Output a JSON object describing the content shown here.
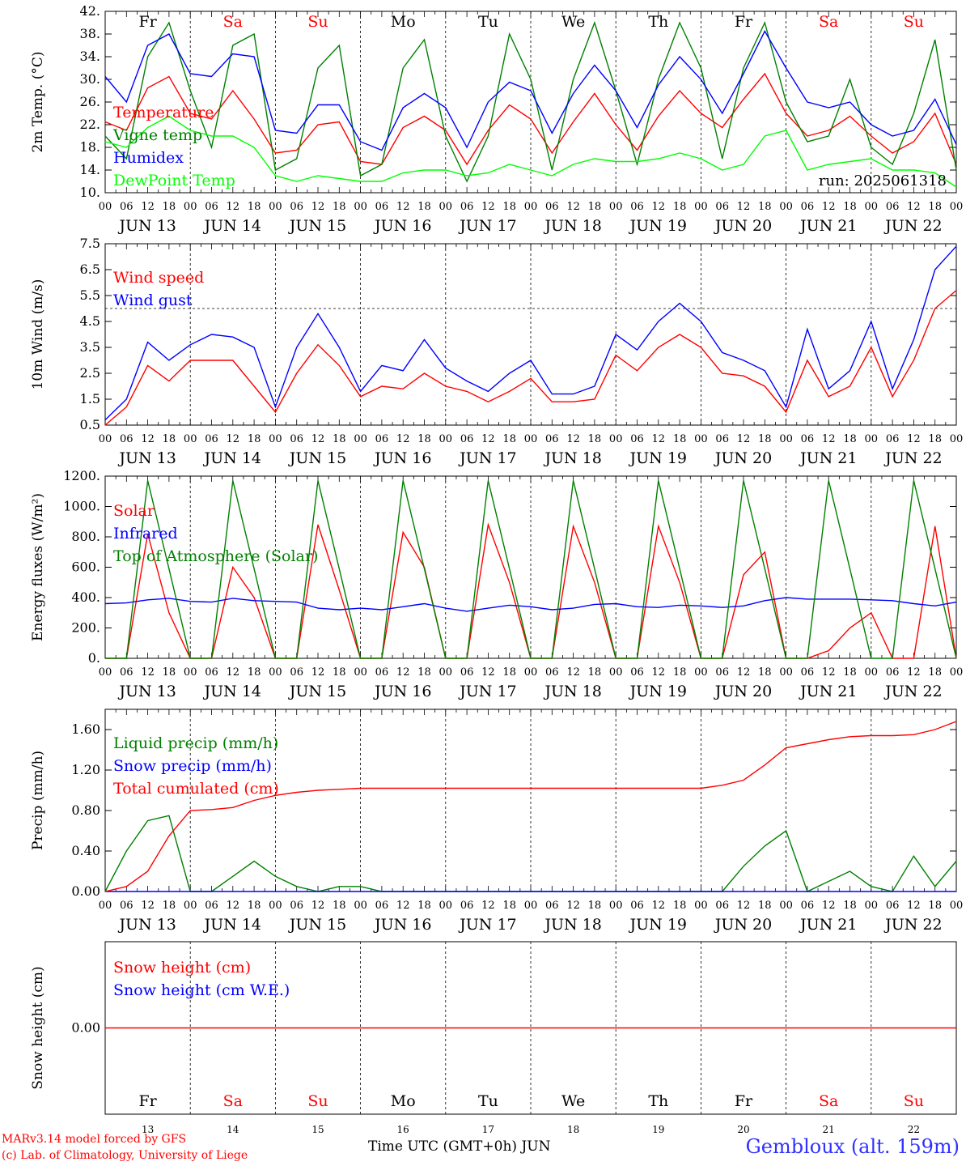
{
  "chart_data": [
    {
      "type": "line",
      "ylabel": "2m Temp. (°C)",
      "ylim": [
        10,
        42
      ],
      "yticks": [
        "42.",
        "38.",
        "34.",
        "30.",
        "26.",
        "22.",
        "18.",
        "14.",
        "10."
      ],
      "annotation": "run: 2025061318",
      "legend": [
        {
          "label": "Temperature",
          "color": "#ff0000"
        },
        {
          "label": "Vigne temp",
          "color": "#008000"
        },
        {
          "label": "Humidex",
          "color": "#0000ff"
        },
        {
          "label": "DewPoint Temp",
          "color": "#00ff00"
        }
      ],
      "x": [
        0,
        6,
        12,
        18,
        24,
        30,
        36,
        42,
        48,
        54,
        60,
        66,
        72,
        78,
        84,
        90,
        96,
        102,
        108,
        114,
        120,
        126,
        132,
        138,
        144,
        150,
        156,
        162,
        168,
        174,
        180,
        186,
        192,
        198,
        204,
        210,
        216,
        222,
        228,
        234,
        240
      ],
      "series": [
        {
          "name": "Temperature",
          "color": "#ff0000",
          "values": [
            22.5,
            21,
            28.5,
            30.5,
            24,
            23,
            28,
            23,
            17,
            17.5,
            22,
            22.5,
            15.5,
            15,
            21.5,
            23.5,
            21,
            15,
            21,
            25.5,
            23,
            17,
            22.5,
            27.5,
            22,
            17.5,
            23.5,
            28,
            24,
            21.5,
            26.5,
            31,
            24,
            20,
            21,
            23.5,
            20,
            17,
            19,
            24,
            15
          ]
        },
        {
          "name": "Vigne temp",
          "color": "#008000",
          "values": [
            20,
            16,
            34,
            40,
            28,
            18,
            36,
            38,
            14,
            16,
            32,
            36,
            13,
            15,
            32,
            37,
            20,
            12,
            20,
            38,
            30,
            14,
            30,
            40,
            28,
            15,
            30,
            40,
            32,
            16,
            32,
            40,
            26,
            19,
            20,
            30,
            18,
            15,
            24,
            37,
            14
          ]
        },
        {
          "name": "Humidex",
          "color": "#0000ff",
          "values": [
            30.5,
            26,
            36,
            38,
            31,
            30.5,
            34.5,
            34,
            21,
            20.5,
            25.5,
            25.5,
            19,
            17.5,
            25,
            27.5,
            25,
            18,
            26,
            29.5,
            28,
            20.5,
            27.5,
            32.5,
            28,
            21.5,
            29,
            34,
            30,
            24,
            31,
            38.5,
            32,
            26,
            25,
            26,
            22,
            20,
            21,
            26.5,
            18.5
          ]
        },
        {
          "name": "DewPoint Temp",
          "color": "#00ff00",
          "values": [
            19,
            18,
            21.5,
            23.5,
            21,
            20,
            20,
            18,
            13,
            12,
            13,
            12.5,
            12,
            12,
            13.5,
            14,
            14,
            13,
            13.5,
            15,
            14,
            13,
            15,
            16,
            15.5,
            15.5,
            16,
            17,
            16,
            14,
            15,
            20,
            21,
            14,
            15,
            15.5,
            16,
            14,
            14,
            13.5,
            11
          ]
        }
      ]
    },
    {
      "type": "line",
      "ylabel": "10m Wind (m/s)",
      "ylim": [
        0.5,
        7.5
      ],
      "yticks": [
        "7.5",
        "6.5",
        "5.5",
        "4.5",
        "3.5",
        "2.5",
        "1.5",
        "0.5"
      ],
      "reference_line": 5.0,
      "legend": [
        {
          "label": "Wind speed",
          "color": "#ff0000"
        },
        {
          "label": "Wind gust",
          "color": "#0000ff"
        }
      ],
      "x": [
        0,
        6,
        12,
        18,
        24,
        30,
        36,
        42,
        48,
        54,
        60,
        66,
        72,
        78,
        84,
        90,
        96,
        102,
        108,
        114,
        120,
        126,
        132,
        138,
        144,
        150,
        156,
        162,
        168,
        174,
        180,
        186,
        192,
        198,
        204,
        210,
        216,
        222,
        228,
        234,
        240
      ],
      "series": [
        {
          "name": "Wind speed",
          "color": "#ff0000",
          "values": [
            0.5,
            1.2,
            2.8,
            2.2,
            3,
            3,
            3,
            2,
            1,
            2.5,
            3.6,
            2.8,
            1.6,
            2,
            1.9,
            2.5,
            2,
            1.8,
            1.4,
            1.8,
            2.3,
            1.4,
            1.4,
            1.5,
            3.2,
            2.6,
            3.5,
            4,
            3.5,
            2.5,
            2.4,
            2,
            1,
            3,
            1.6,
            2,
            3.5,
            1.6,
            3,
            5,
            5.7
          ]
        },
        {
          "name": "Wind gust",
          "color": "#0000ff",
          "values": [
            0.7,
            1.5,
            3.7,
            3,
            3.6,
            4,
            3.9,
            3.5,
            1.2,
            3.5,
            4.8,
            3.5,
            1.8,
            2.8,
            2.6,
            3.8,
            2.7,
            2.2,
            1.8,
            2.5,
            3,
            1.7,
            1.7,
            2,
            4,
            3.4,
            4.5,
            5.2,
            4.5,
            3.3,
            3,
            2.6,
            1.2,
            4.2,
            1.9,
            2.6,
            4.5,
            1.9,
            3.8,
            6.5,
            7.4
          ]
        }
      ]
    },
    {
      "type": "line",
      "ylabel": "Energy fluxes (W/m²)",
      "ylim": [
        0,
        1200
      ],
      "yticks": [
        "1200.",
        "1000.",
        "800.",
        "600.",
        "400.",
        "200.",
        "0."
      ],
      "legend": [
        {
          "label": "Solar",
          "color": "#ff0000"
        },
        {
          "label": "Infrared",
          "color": "#0000ff"
        },
        {
          "label": "Top of Atmosphere (Solar)",
          "color": "#008000"
        }
      ],
      "x": [
        0,
        6,
        12,
        18,
        24,
        30,
        36,
        42,
        48,
        54,
        60,
        66,
        72,
        78,
        84,
        90,
        96,
        102,
        108,
        114,
        120,
        126,
        132,
        138,
        144,
        150,
        156,
        162,
        168,
        174,
        180,
        186,
        192,
        198,
        204,
        210,
        216,
        222,
        228,
        234,
        240
      ],
      "series": [
        {
          "name": "Solar",
          "color": "#ff0000",
          "values": [
            0,
            0,
            820,
            300,
            0,
            0,
            600,
            400,
            0,
            0,
            880,
            450,
            0,
            0,
            830,
            600,
            0,
            0,
            880,
            500,
            0,
            0,
            870,
            500,
            0,
            0,
            870,
            500,
            0,
            0,
            550,
            700,
            0,
            0,
            50,
            200,
            300,
            0,
            0,
            870,
            0
          ]
        },
        {
          "name": "Infrared",
          "color": "#0000ff",
          "values": [
            360,
            365,
            385,
            395,
            375,
            370,
            395,
            380,
            375,
            370,
            330,
            320,
            330,
            320,
            340,
            360,
            330,
            310,
            330,
            350,
            340,
            320,
            330,
            355,
            360,
            340,
            335,
            350,
            345,
            335,
            345,
            380,
            400,
            390,
            390,
            390,
            385,
            380,
            360,
            345,
            370
          ]
        },
        {
          "name": "Top of Atmosphere (Solar)",
          "color": "#008000",
          "values": [
            0,
            0,
            1170,
            590,
            0,
            0,
            1170,
            590,
            0,
            0,
            1170,
            590,
            0,
            0,
            1170,
            590,
            0,
            0,
            1170,
            590,
            0,
            0,
            1170,
            590,
            0,
            0,
            1170,
            590,
            0,
            0,
            1170,
            590,
            0,
            0,
            1170,
            590,
            0,
            0,
            1170,
            590,
            0
          ]
        }
      ]
    },
    {
      "type": "line",
      "ylabel": "Precip (mm/h)",
      "ylim": [
        0,
        1.8
      ],
      "yticks": [
        "1.60",
        "1.20",
        "0.80",
        "0.40",
        "0.00"
      ],
      "legend": [
        {
          "label": "Liquid precip (mm/h)",
          "color": "#008000"
        },
        {
          "label": "Snow precip (mm/h)",
          "color": "#0000ff"
        },
        {
          "label": "Total cumulated (cm)",
          "color": "#ff0000"
        }
      ],
      "x": [
        0,
        6,
        12,
        18,
        24,
        30,
        36,
        42,
        48,
        54,
        60,
        66,
        72,
        78,
        84,
        90,
        96,
        102,
        108,
        114,
        120,
        126,
        132,
        138,
        144,
        150,
        156,
        162,
        168,
        174,
        180,
        186,
        192,
        198,
        204,
        210,
        216,
        222,
        228,
        234,
        240
      ],
      "series": [
        {
          "name": "Liquid precip (mm/h)",
          "color": "#008000",
          "values": [
            0,
            0.4,
            0.7,
            0.75,
            0,
            0,
            0.15,
            0.3,
            0.15,
            0.05,
            0,
            0.05,
            0.05,
            0,
            0,
            0,
            0,
            0,
            0,
            0,
            0,
            0,
            0,
            0,
            0,
            0,
            0,
            0,
            0,
            0,
            0.25,
            0.45,
            0.6,
            0,
            0.1,
            0.2,
            0.05,
            0,
            0.35,
            0.05,
            0.3
          ]
        },
        {
          "name": "Snow precip (mm/h)",
          "color": "#0000ff",
          "values": [
            0,
            0,
            0,
            0,
            0,
            0,
            0,
            0,
            0,
            0,
            0,
            0,
            0,
            0,
            0,
            0,
            0,
            0,
            0,
            0,
            0,
            0,
            0,
            0,
            0,
            0,
            0,
            0,
            0,
            0,
            0,
            0,
            0,
            0,
            0,
            0,
            0,
            0,
            0,
            0,
            0
          ]
        },
        {
          "name": "Total cumulated (cm)",
          "color": "#ff0000",
          "values": [
            0,
            0.05,
            0.2,
            0.55,
            0.8,
            0.81,
            0.83,
            0.9,
            0.95,
            0.98,
            1.0,
            1.01,
            1.02,
            1.02,
            1.02,
            1.02,
            1.02,
            1.02,
            1.02,
            1.02,
            1.02,
            1.02,
            1.02,
            1.02,
            1.02,
            1.02,
            1.02,
            1.02,
            1.02,
            1.05,
            1.1,
            1.25,
            1.42,
            1.46,
            1.5,
            1.53,
            1.54,
            1.54,
            1.55,
            1.6,
            1.68
          ]
        }
      ]
    },
    {
      "type": "line",
      "ylabel": "Snow height (cm)",
      "ylim": [
        -1,
        1
      ],
      "yticks": [
        "0.00"
      ],
      "legend": [
        {
          "label": "Snow height (cm)",
          "color": "#ff0000"
        },
        {
          "label": "Snow height (cm W.E.)",
          "color": "#0000ff"
        }
      ],
      "x": [
        0,
        240
      ],
      "series": [
        {
          "name": "Snow height (cm)",
          "color": "#ff0000",
          "values": [
            0,
            0
          ]
        }
      ]
    }
  ],
  "days": [
    {
      "abbr": "Fr",
      "date": "JUN 13",
      "num": "13",
      "weekend": false
    },
    {
      "abbr": "Sa",
      "date": "JUN 14",
      "num": "14",
      "weekend": true
    },
    {
      "abbr": "Su",
      "date": "JUN 15",
      "num": "15",
      "weekend": true
    },
    {
      "abbr": "Mo",
      "date": "JUN 16",
      "num": "16",
      "weekend": false
    },
    {
      "abbr": "Tu",
      "date": "JUN 17",
      "num": "17",
      "weekend": false
    },
    {
      "abbr": "We",
      "date": "JUN 18",
      "num": "18",
      "weekend": false
    },
    {
      "abbr": "Th",
      "date": "JUN 19",
      "num": "19",
      "weekend": false
    },
    {
      "abbr": "Fr",
      "date": "JUN 20",
      "num": "20",
      "weekend": false
    },
    {
      "abbr": "Sa",
      "date": "JUN 21",
      "num": "21",
      "weekend": true
    },
    {
      "abbr": "Su",
      "date": "JUN 22",
      "num": "22",
      "weekend": true
    }
  ],
  "hour_ticks": [
    "00",
    "06",
    "12",
    "18"
  ],
  "end_tick": "00",
  "colors": {
    "weekday": "#000000",
    "weekend": "#ff0000"
  },
  "footer": {
    "credit1": "MARv3.14 model forced by GFS",
    "credit2": "(c) Lab. of Climatology, University of Liege",
    "xlabel": "Time UTC (GMT+0h)  JUN",
    "station": "Gembloux (alt. 159m)"
  }
}
